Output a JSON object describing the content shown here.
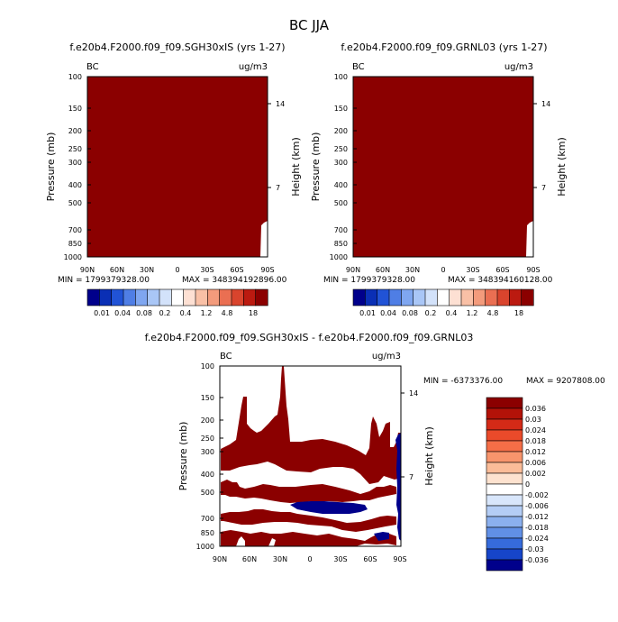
{
  "colors": {
    "dark_red": "#8b0000",
    "dark_blue": "#00008b",
    "background": "#ffffff"
  },
  "chart_data": [
    {
      "type": "heatmap",
      "main_title": "BC JJA",
      "title": "f.e20b4.F2000.f09_f09.SGH30xIS (yrs 1-27)",
      "corner_left": "BC",
      "corner_right": "ug/m3",
      "ylabel": "Pressure (mb)",
      "y2label": "Height (km)",
      "x_ticks": [
        "90N",
        "60N",
        "30N",
        "0",
        "30S",
        "60S",
        "90S"
      ],
      "y_ticks": [
        "100",
        "150",
        "200",
        "250",
        "300",
        "400",
        "500",
        "700",
        "850",
        "1000"
      ],
      "y2_ticks": [
        "14",
        "7"
      ],
      "min_label": "MIN = 1799379328.00",
      "max_label": "MAX = 348394192896.00",
      "colorbar_labels": [
        "0.01",
        "0.04",
        "0.08",
        "0.2",
        "0.4",
        "1.2",
        "4.8",
        "18"
      ],
      "colorbar_colors": [
        "#00008b",
        "#0a2fb5",
        "#2153d6",
        "#4f7ee5",
        "#7fa6f0",
        "#a9c6f6",
        "#d3e2fa",
        "#ffffff",
        "#fde0d3",
        "#f9c0a6",
        "#f39b7c",
        "#ea6f52",
        "#d9442d",
        "#bb1a10",
        "#8b0000"
      ]
    },
    {
      "type": "heatmap",
      "title": "f.e20b4.F2000.f09_f09.GRNL03 (yrs 1-27)",
      "corner_left": "BC",
      "corner_right": "ug/m3",
      "ylabel": "Pressure (mb)",
      "y2label": "Height (km)",
      "x_ticks": [
        "90N",
        "60N",
        "30N",
        "0",
        "30S",
        "60S",
        "90S"
      ],
      "y_ticks": [
        "100",
        "150",
        "200",
        "250",
        "300",
        "400",
        "500",
        "700",
        "850",
        "1000"
      ],
      "y2_ticks": [
        "14",
        "7"
      ],
      "min_label": "MIN = 1799379328.00",
      "max_label": "MAX = 348394160128.00",
      "colorbar_labels": [
        "0.01",
        "0.04",
        "0.08",
        "0.2",
        "0.4",
        "1.2",
        "4.8",
        "18"
      ],
      "colorbar_colors": [
        "#00008b",
        "#0a2fb5",
        "#2153d6",
        "#4f7ee5",
        "#7fa6f0",
        "#a9c6f6",
        "#d3e2fa",
        "#ffffff",
        "#fde0d3",
        "#f9c0a6",
        "#f39b7c",
        "#ea6f52",
        "#d9442d",
        "#bb1a10",
        "#8b0000"
      ]
    },
    {
      "type": "heatmap",
      "title": "f.e20b4.F2000.f09_f09.SGH30xIS - f.e20b4.F2000.f09_f09.GRNL03",
      "corner_left": "BC",
      "corner_right": "ug/m3",
      "ylabel": "Pressure (mb)",
      "y2label": "Height (km)",
      "x_ticks": [
        "90N",
        "60N",
        "30N",
        "0",
        "30S",
        "60S",
        "90S"
      ],
      "y_ticks": [
        "100",
        "150",
        "200",
        "250",
        "300",
        "400",
        "500",
        "700",
        "850",
        "1000"
      ],
      "y2_ticks": [
        "14",
        "7"
      ],
      "min_label": "MIN = -6373376.00",
      "max_label": "MAX = 9207808.00",
      "colorbar_labels": [
        "0.036",
        "0.03",
        "0.024",
        "0.018",
        "0.012",
        "0.006",
        "0.002",
        "0",
        "-0.002",
        "-0.006",
        "-0.012",
        "-0.018",
        "-0.024",
        "-0.03",
        "-0.036"
      ],
      "colorbar_colors": [
        "#8b0000",
        "#b31208",
        "#d42a17",
        "#ea4a2a",
        "#f56e47",
        "#f8956c",
        "#fbbc98",
        "#fde2cf",
        "#ffffff",
        "#d8e6fb",
        "#b4cdf5",
        "#8bb0ee",
        "#6190e6",
        "#366bdb",
        "#1645c9",
        "#00008b"
      ]
    }
  ]
}
